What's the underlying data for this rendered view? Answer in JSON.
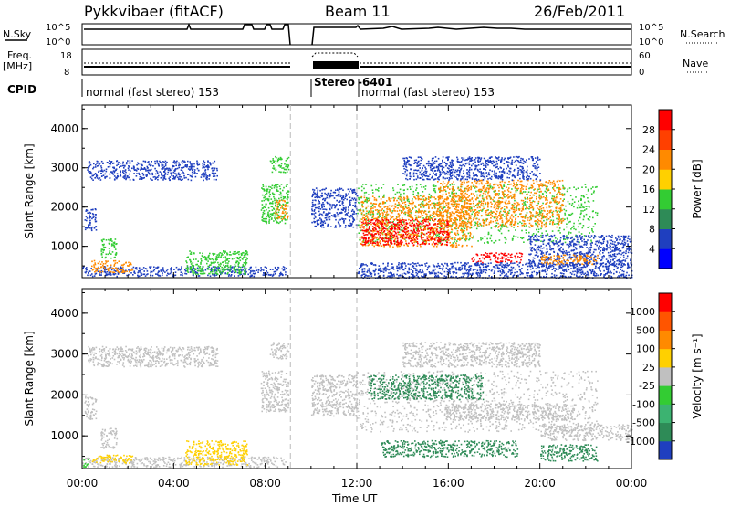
{
  "header": {
    "title": "Pykkvibaer (fitACF)",
    "beam": "Beam 11",
    "date": "26/Feb/2011"
  },
  "panels": {
    "nsky": {
      "left_label": "N.Sky",
      "top_tick": "10^5",
      "bottom_tick": "10^0",
      "right_label": "N.Search",
      "right_top_tick": "10^5",
      "right_bottom_tick": "10^0"
    },
    "freq": {
      "left_label_line1": "Freq.",
      "left_label_line2": "[MHz]",
      "top_tick": "18",
      "bottom_tick": "8",
      "right_label": "Nave",
      "right_top_tick": "60",
      "right_bottom_tick": "0"
    },
    "cpid": {
      "label": "CPID",
      "segments": [
        "normal (fast stereo) 153",
        "Stereo",
        "-6401",
        "normal (fast stereo) 153"
      ]
    }
  },
  "colors": {
    "red": "#ff0000",
    "orange": "#ff8a00",
    "yellow": "#ffd000",
    "green": "#33cc33",
    "darkgreen": "#2e8b57",
    "blue": "#1f3fbf",
    "gray": "#c0c0c0",
    "lightblue": "#4080ff"
  },
  "chart_data": [
    {
      "type": "heatmap",
      "name": "power-panel",
      "ylabel": "Slant Range [km]",
      "xlabel": "Time UT",
      "x_ticks": [
        "00:00",
        "04:00",
        "08:00",
        "12:00",
        "16:00",
        "20:00",
        "00:00"
      ],
      "y_ticks": [
        "1000",
        "2000",
        "3000",
        "4000"
      ],
      "xlim_hours": [
        0,
        24
      ],
      "ylim": [
        200,
        4600
      ],
      "colorbar": {
        "label": "Power [dB]",
        "ticks": [
          "4",
          "8",
          "12",
          "16",
          "20",
          "24",
          "28"
        ],
        "colors": [
          "#0000ff",
          "#1f3fbf",
          "#2e8b57",
          "#33cc33",
          "#ffd000",
          "#ff8a00",
          "#ff4000",
          "#ff0000"
        ]
      },
      "data_gaps_hours": [
        [
          9.1,
          10.0
        ]
      ],
      "regions": [
        {
          "t0": 0.2,
          "t1": 5.9,
          "r0": 2700,
          "r1": 3200,
          "level": "blue"
        },
        {
          "t0": 0.1,
          "t1": 0.6,
          "r0": 1400,
          "r1": 2000,
          "level": "blue"
        },
        {
          "t0": 0.8,
          "t1": 1.5,
          "r0": 700,
          "r1": 1200,
          "level": "green"
        },
        {
          "t0": 0.0,
          "t1": 8.9,
          "r0": 250,
          "r1": 500,
          "level": "blue"
        },
        {
          "t0": 0.4,
          "t1": 2.2,
          "r0": 350,
          "r1": 650,
          "level": "orange"
        },
        {
          "t0": 4.5,
          "t1": 7.2,
          "r0": 300,
          "r1": 900,
          "level": "green"
        },
        {
          "t0": 7.8,
          "t1": 9.0,
          "r0": 1600,
          "r1": 2600,
          "level": "green"
        },
        {
          "t0": 8.4,
          "t1": 9.0,
          "r0": 1700,
          "r1": 2200,
          "level": "orange"
        },
        {
          "t0": 8.2,
          "t1": 9.0,
          "r0": 2900,
          "r1": 3300,
          "level": "green"
        },
        {
          "t0": 10.0,
          "t1": 12.0,
          "r0": 1500,
          "r1": 2500,
          "level": "blue"
        },
        {
          "t0": 12.0,
          "t1": 22.5,
          "r0": 1100,
          "r1": 2600,
          "level": "green"
        },
        {
          "t0": 12.1,
          "t1": 17.0,
          "r0": 1000,
          "r1": 2300,
          "level": "orange"
        },
        {
          "t0": 12.2,
          "t1": 16.0,
          "r0": 1050,
          "r1": 1700,
          "level": "red"
        },
        {
          "t0": 15.5,
          "t1": 21.0,
          "r0": 1500,
          "r1": 2700,
          "level": "orange"
        },
        {
          "t0": 14.0,
          "t1": 20.0,
          "r0": 2700,
          "r1": 3300,
          "level": "blue"
        },
        {
          "t0": 17.0,
          "t1": 19.2,
          "r0": 600,
          "r1": 850,
          "level": "red"
        },
        {
          "t0": 19.5,
          "t1": 24.0,
          "r0": 500,
          "r1": 1300,
          "level": "blue"
        },
        {
          "t0": 20.0,
          "t1": 22.5,
          "r0": 550,
          "r1": 800,
          "level": "orange"
        },
        {
          "t0": 12.0,
          "t1": 24.0,
          "r0": 200,
          "r1": 600,
          "level": "blue"
        }
      ]
    },
    {
      "type": "heatmap",
      "name": "velocity-panel",
      "ylabel": "Slant Range [km]",
      "xlabel": "Time UT",
      "x_ticks": [
        "00:00",
        "04:00",
        "08:00",
        "12:00",
        "16:00",
        "20:00",
        "00:00"
      ],
      "y_ticks": [
        "1000",
        "2000",
        "3000",
        "4000"
      ],
      "xlim_hours": [
        0,
        24
      ],
      "ylim": [
        200,
        4600
      ],
      "colorbar": {
        "label": "Velocity [m s⁻¹]",
        "ticks": [
          "1000",
          "500",
          "100",
          "25",
          "-25",
          "-100",
          "-500",
          "-1000"
        ],
        "colors": [
          "#1f3fbf",
          "#2e8b57",
          "#3cb371",
          "#33cc33",
          "#c0c0c0",
          "#ffd000",
          "#ff8a00",
          "#ff5500",
          "#ff0000"
        ]
      },
      "data_gaps_hours": [
        [
          9.1,
          10.0
        ]
      ],
      "regions": [
        {
          "t0": 0.2,
          "t1": 5.9,
          "r0": 2700,
          "r1": 3200,
          "level": "gray"
        },
        {
          "t0": 0.1,
          "t1": 0.6,
          "r0": 1400,
          "r1": 2000,
          "level": "gray"
        },
        {
          "t0": 0.8,
          "t1": 1.5,
          "r0": 700,
          "r1": 1200,
          "level": "gray"
        },
        {
          "t0": 0.0,
          "t1": 8.9,
          "r0": 250,
          "r1": 500,
          "level": "gray"
        },
        {
          "t0": 0.4,
          "t1": 2.2,
          "r0": 350,
          "r1": 550,
          "level": "yellow"
        },
        {
          "t0": 4.5,
          "t1": 7.2,
          "r0": 300,
          "r1": 900,
          "level": "yellow"
        },
        {
          "t0": 7.8,
          "t1": 9.0,
          "r0": 1600,
          "r1": 2600,
          "level": "gray"
        },
        {
          "t0": 8.2,
          "t1": 9.0,
          "r0": 2900,
          "r1": 3300,
          "level": "gray"
        },
        {
          "t0": 10.0,
          "t1": 12.0,
          "r0": 1500,
          "r1": 2500,
          "level": "gray"
        },
        {
          "t0": 12.0,
          "t1": 22.5,
          "r0": 1100,
          "r1": 2600,
          "level": "gray"
        },
        {
          "t0": 12.5,
          "t1": 17.5,
          "r0": 1900,
          "r1": 2500,
          "level": "darkgreen"
        },
        {
          "t0": 14.0,
          "t1": 20.0,
          "r0": 2700,
          "r1": 3300,
          "level": "gray"
        },
        {
          "t0": 15.8,
          "t1": 21.5,
          "r0": 1400,
          "r1": 1800,
          "level": "gray"
        },
        {
          "t0": 13.0,
          "t1": 19.0,
          "r0": 500,
          "r1": 900,
          "level": "darkgreen"
        },
        {
          "t0": 20.0,
          "t1": 22.5,
          "r0": 400,
          "r1": 800,
          "level": "darkgreen"
        },
        {
          "t0": 20.0,
          "t1": 24.0,
          "r0": 900,
          "r1": 1300,
          "level": "gray"
        },
        {
          "t0": 0.0,
          "t1": 0.3,
          "r0": 250,
          "r1": 450,
          "level": "green"
        }
      ]
    }
  ]
}
